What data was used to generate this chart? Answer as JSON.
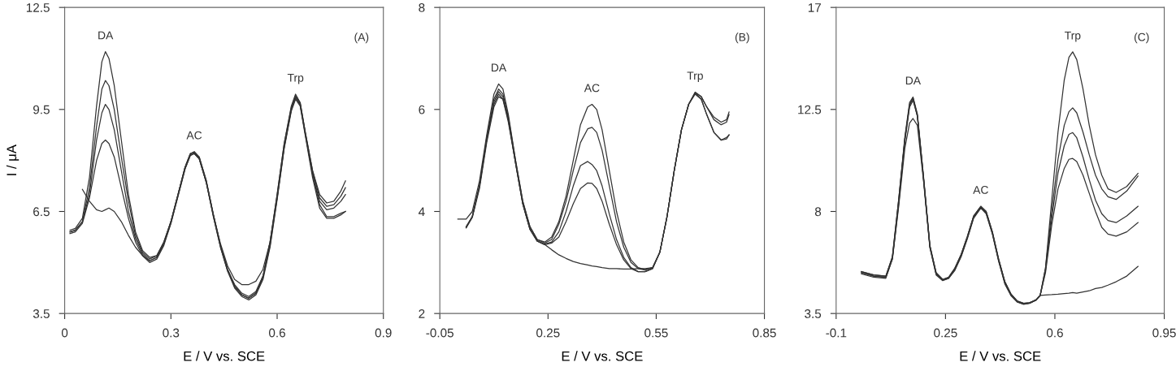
{
  "chart_data": [
    {
      "type": "line",
      "xlabel": "E / V vs. SCE",
      "ylabel": "I / μA",
      "xlim": [
        0,
        0.9
      ],
      "xticks": [
        0,
        0.3,
        0.6,
        0.9
      ],
      "ylim": [
        3.5,
        12.5
      ],
      "yticks": [
        3.5,
        6.5,
        9.5,
        12.5
      ],
      "grid": false,
      "legend": false,
      "marker": "none",
      "line_style": "solid",
      "x": [
        0.015,
        0.03,
        0.05,
        0.07,
        0.09,
        0.105,
        0.115,
        0.125,
        0.14,
        0.16,
        0.18,
        0.2,
        0.22,
        0.24,
        0.26,
        0.28,
        0.3,
        0.32,
        0.34,
        0.355,
        0.366,
        0.38,
        0.4,
        0.42,
        0.44,
        0.46,
        0.48,
        0.5,
        0.52,
        0.54,
        0.56,
        0.58,
        0.6,
        0.62,
        0.64,
        0.652,
        0.665,
        0.68,
        0.7,
        0.72,
        0.74,
        0.76,
        0.78,
        0.793
      ],
      "series": [
        {
          "color": "#333333",
          "values": [
            5.95,
            6.0,
            6.3,
            7.5,
            9.6,
            10.9,
            11.2,
            11.0,
            10.2,
            8.6,
            7.0,
            5.9,
            5.35,
            5.15,
            5.2,
            5.6,
            6.2,
            7.0,
            7.8,
            8.2,
            8.26,
            8.1,
            7.4,
            6.4,
            5.5,
            4.8,
            4.35,
            4.1,
            4.0,
            4.15,
            4.6,
            5.6,
            7.0,
            8.5,
            9.6,
            9.95,
            9.7,
            8.8,
            7.7,
            7.0,
            6.75,
            6.8,
            7.1,
            7.4
          ]
        },
        {
          "color": "#333333",
          "values": [
            5.9,
            5.95,
            6.2,
            7.2,
            9.0,
            10.1,
            10.35,
            10.2,
            9.5,
            8.1,
            6.8,
            5.8,
            5.3,
            5.1,
            5.2,
            5.6,
            6.2,
            7.0,
            7.8,
            8.2,
            8.24,
            8.1,
            7.4,
            6.4,
            5.5,
            4.8,
            4.3,
            4.05,
            3.95,
            4.1,
            4.6,
            5.6,
            7.0,
            8.5,
            9.55,
            9.9,
            9.7,
            8.8,
            7.7,
            6.9,
            6.65,
            6.7,
            6.95,
            7.2
          ]
        },
        {
          "color": "#333333",
          "values": [
            5.9,
            5.95,
            6.2,
            7.0,
            8.6,
            9.4,
            9.65,
            9.5,
            8.9,
            7.7,
            6.5,
            5.7,
            5.25,
            5.05,
            5.15,
            5.55,
            6.2,
            7.0,
            7.8,
            8.2,
            8.22,
            8.05,
            7.35,
            6.35,
            5.45,
            4.75,
            4.3,
            4.05,
            3.95,
            4.1,
            4.55,
            5.5,
            6.9,
            8.4,
            9.5,
            9.85,
            9.65,
            8.75,
            7.6,
            6.8,
            6.55,
            6.6,
            6.8,
            7.0
          ]
        },
        {
          "color": "#333333",
          "values": [
            5.85,
            5.9,
            6.15,
            6.9,
            8.0,
            8.5,
            8.6,
            8.5,
            8.1,
            7.2,
            6.3,
            5.6,
            5.2,
            5.0,
            5.1,
            5.5,
            6.15,
            6.95,
            7.75,
            8.15,
            8.2,
            8.05,
            7.35,
            6.35,
            5.45,
            4.75,
            4.25,
            4.0,
            3.9,
            4.05,
            4.5,
            5.45,
            6.85,
            8.35,
            9.45,
            9.8,
            9.6,
            8.7,
            7.5,
            6.6,
            6.3,
            6.3,
            6.4,
            6.5
          ]
        },
        {
          "color": "#333333",
          "values": [
            null,
            null,
            7.15,
            6.8,
            6.55,
            6.5,
            6.55,
            6.6,
            6.5,
            6.2,
            5.8,
            5.45,
            5.2,
            5.05,
            5.15,
            5.55,
            6.15,
            6.95,
            7.75,
            8.15,
            8.2,
            8.05,
            7.35,
            6.4,
            5.55,
            4.9,
            4.5,
            4.35,
            4.35,
            4.45,
            4.8,
            5.6,
            6.9,
            8.4,
            9.5,
            9.85,
            9.65,
            8.75,
            7.6,
            6.7,
            6.35,
            6.35,
            6.45,
            6.5
          ]
        }
      ],
      "annotations": [
        {
          "text": "DA",
          "x": 0.115,
          "y": 11.2
        },
        {
          "text": "AC",
          "x": 0.366,
          "y": 8.26
        },
        {
          "text": "Trp",
          "x": 0.652,
          "y": 9.95
        },
        "(A)"
      ]
    },
    {
      "type": "line",
      "xlabel": "E / V vs. SCE",
      "xlim": [
        -0.05,
        0.85
      ],
      "xticks": [
        -0.05,
        0.25,
        0.55,
        0.85
      ],
      "ylim": [
        2,
        8
      ],
      "yticks": [
        2,
        4,
        6,
        8
      ],
      "grid": false,
      "legend": false,
      "marker": "none",
      "line_style": "solid",
      "x": [
        0.0,
        0.023,
        0.04,
        0.06,
        0.08,
        0.1,
        0.113,
        0.125,
        0.14,
        0.16,
        0.18,
        0.2,
        0.22,
        0.241,
        0.26,
        0.28,
        0.3,
        0.32,
        0.34,
        0.36,
        0.372,
        0.385,
        0.4,
        0.42,
        0.44,
        0.46,
        0.48,
        0.5,
        0.519,
        0.54,
        0.56,
        0.58,
        0.6,
        0.62,
        0.64,
        0.658,
        0.675,
        0.69,
        0.71,
        0.73,
        0.745,
        0.752
      ],
      "series": [
        {
          "color": "#333333",
          "values": [
            3.85,
            3.85,
            4.0,
            4.6,
            5.5,
            6.3,
            6.5,
            6.4,
            5.9,
            5.0,
            4.2,
            3.7,
            3.45,
            3.4,
            3.5,
            3.8,
            4.3,
            5.0,
            5.7,
            6.05,
            6.1,
            6.0,
            5.6,
            4.8,
            4.0,
            3.4,
            3.05,
            2.9,
            2.86,
            2.9,
            3.2,
            3.9,
            4.8,
            5.6,
            6.1,
            6.34,
            6.25,
            6.05,
            5.85,
            5.75,
            5.8,
            5.95
          ]
        },
        {
          "color": "#333333",
          "values": [
            null,
            3.7,
            3.9,
            4.5,
            5.45,
            6.2,
            6.4,
            6.3,
            5.85,
            5.0,
            4.2,
            3.7,
            3.45,
            3.38,
            3.45,
            3.75,
            4.2,
            4.8,
            5.35,
            5.62,
            5.65,
            5.55,
            5.2,
            4.5,
            3.8,
            3.3,
            3.0,
            2.88,
            2.85,
            2.9,
            3.2,
            3.9,
            4.8,
            5.6,
            6.1,
            6.33,
            6.25,
            6.05,
            5.8,
            5.7,
            5.75,
            5.9
          ]
        },
        {
          "color": "#333333",
          "values": [
            null,
            3.68,
            3.9,
            4.5,
            5.4,
            6.15,
            6.35,
            6.25,
            5.8,
            4.95,
            4.15,
            3.65,
            3.42,
            3.36,
            3.4,
            3.6,
            4.0,
            4.5,
            4.9,
            4.98,
            4.92,
            4.8,
            4.5,
            3.95,
            3.45,
            3.1,
            2.9,
            2.82,
            2.82,
            2.88,
            3.2,
            3.9,
            4.8,
            5.6,
            6.1,
            6.32,
            6.2,
            5.9,
            5.55,
            5.4,
            5.45,
            5.5
          ]
        },
        {
          "color": "#333333",
          "values": [
            null,
            3.68,
            3.88,
            4.45,
            5.35,
            6.05,
            6.25,
            6.2,
            5.75,
            4.95,
            4.15,
            3.65,
            3.42,
            3.35,
            3.38,
            3.5,
            3.8,
            4.15,
            4.45,
            4.56,
            4.55,
            4.45,
            4.2,
            3.75,
            3.35,
            3.05,
            2.88,
            2.82,
            2.82,
            2.88,
            3.2,
            3.9,
            4.8,
            5.6,
            6.1,
            6.3,
            6.2,
            5.9,
            5.55,
            5.4,
            5.42,
            5.5
          ]
        },
        {
          "color": "#333333",
          "values": [
            null,
            3.7,
            3.9,
            4.5,
            5.4,
            6.1,
            6.3,
            6.2,
            5.8,
            4.95,
            4.15,
            3.65,
            3.42,
            3.35,
            3.25,
            3.15,
            3.08,
            3.02,
            2.98,
            2.95,
            2.93,
            2.92,
            2.9,
            2.88,
            2.88,
            2.87,
            2.87,
            2.88,
            2.88,
            2.9,
            null,
            null,
            null,
            null,
            null,
            null,
            null,
            null,
            null,
            null,
            null,
            null
          ]
        }
      ],
      "annotations": [
        {
          "text": "DA",
          "x": 0.113,
          "y": 6.5
        },
        {
          "text": "AC",
          "x": 0.372,
          "y": 6.1
        },
        {
          "text": "Trp",
          "x": 0.658,
          "y": 6.34
        },
        "(B)"
      ]
    },
    {
      "type": "line",
      "xlabel": "E / V vs. SCE",
      "xlim": [
        -0.1,
        0.95
      ],
      "xticks": [
        -0.1,
        0.25,
        0.6,
        0.95
      ],
      "ylim": [
        3.5,
        17
      ],
      "yticks": [
        3.5,
        8,
        12.5,
        17
      ],
      "grid": false,
      "legend": false,
      "marker": "none",
      "line_style": "solid",
      "x": [
        -0.019,
        0.02,
        0.059,
        0.08,
        0.1,
        0.12,
        0.135,
        0.146,
        0.16,
        0.18,
        0.2,
        0.22,
        0.241,
        0.26,
        0.28,
        0.3,
        0.32,
        0.34,
        0.363,
        0.38,
        0.4,
        0.42,
        0.44,
        0.46,
        0.48,
        0.5,
        0.519,
        0.54,
        0.553,
        0.57,
        0.59,
        0.61,
        0.63,
        0.645,
        0.657,
        0.67,
        0.69,
        0.71,
        0.73,
        0.75,
        0.77,
        0.796,
        0.83,
        0.866
      ],
      "series": [
        {
          "color": "#333333",
          "values": [
            5.35,
            5.2,
            5.15,
            6.0,
            8.5,
            11.3,
            12.8,
            13.05,
            12.3,
            9.5,
            6.5,
            5.3,
            5.0,
            5.1,
            5.5,
            6.1,
            6.9,
            7.8,
            8.23,
            8.0,
            7.1,
            5.9,
            4.9,
            4.35,
            4.05,
            3.95,
            3.98,
            4.1,
            4.3,
            5.5,
            8.5,
            11.5,
            13.8,
            14.8,
            15.04,
            14.7,
            13.4,
            11.8,
            10.5,
            9.6,
            9.0,
            8.84,
            9.1,
            9.68
          ]
        },
        {
          "color": "#333333",
          "values": [
            5.3,
            5.15,
            5.1,
            5.95,
            8.4,
            11.2,
            12.7,
            13.0,
            12.2,
            9.4,
            6.45,
            5.25,
            4.98,
            5.08,
            5.45,
            6.05,
            6.85,
            7.75,
            8.2,
            7.95,
            7.05,
            5.85,
            4.85,
            4.3,
            4.02,
            3.92,
            3.96,
            4.1,
            4.3,
            5.5,
            8.0,
            10.3,
            11.8,
            12.4,
            12.57,
            12.35,
            11.5,
            10.5,
            9.6,
            9.0,
            8.65,
            8.53,
            8.9,
            9.56
          ]
        },
        {
          "color": "#333333",
          "values": [
            5.3,
            5.15,
            5.1,
            5.9,
            8.3,
            11.1,
            12.6,
            12.9,
            12.2,
            9.4,
            6.45,
            5.25,
            4.97,
            5.05,
            5.45,
            6.05,
            6.85,
            7.75,
            8.18,
            7.95,
            7.05,
            5.85,
            4.85,
            4.3,
            4.02,
            3.92,
            3.96,
            4.1,
            4.3,
            5.4,
            7.7,
            9.7,
            10.9,
            11.4,
            11.48,
            11.25,
            10.4,
            9.4,
            8.5,
            7.9,
            7.6,
            7.51,
            7.8,
            8.23
          ]
        },
        {
          "color": "#333333",
          "values": [
            5.25,
            5.1,
            5.05,
            5.9,
            8.2,
            10.8,
            11.9,
            12.1,
            11.8,
            9.3,
            6.4,
            5.2,
            4.95,
            5.05,
            5.4,
            6.0,
            6.8,
            7.7,
            8.15,
            7.9,
            7.0,
            5.8,
            4.8,
            4.28,
            4.0,
            3.9,
            3.95,
            4.08,
            4.3,
            5.3,
            7.4,
            9.0,
            9.9,
            10.3,
            10.34,
            10.2,
            9.6,
            8.8,
            8.0,
            7.3,
            7.0,
            6.91,
            7.1,
            7.51
          ]
        },
        {
          "color": "#333333",
          "values": [
            5.35,
            5.2,
            5.15,
            6.0,
            8.5,
            11.2,
            12.7,
            13.0,
            12.25,
            9.45,
            6.5,
            5.3,
            5.0,
            5.1,
            5.5,
            6.1,
            6.9,
            7.8,
            8.22,
            8.0,
            7.1,
            5.9,
            4.9,
            4.35,
            4.05,
            3.95,
            3.98,
            4.1,
            4.3,
            4.32,
            4.33,
            4.35,
            4.38,
            4.4,
            4.42,
            4.4,
            4.45,
            4.5,
            4.6,
            4.65,
            4.75,
            4.9,
            5.15,
            5.58
          ]
        }
      ],
      "annotations": [
        {
          "text": "DA",
          "x": 0.146,
          "y": 13.05
        },
        {
          "text": "AC",
          "x": 0.363,
          "y": 8.23
        },
        {
          "text": "Trp",
          "x": 0.657,
          "y": 15.04
        },
        "(C)"
      ]
    }
  ]
}
